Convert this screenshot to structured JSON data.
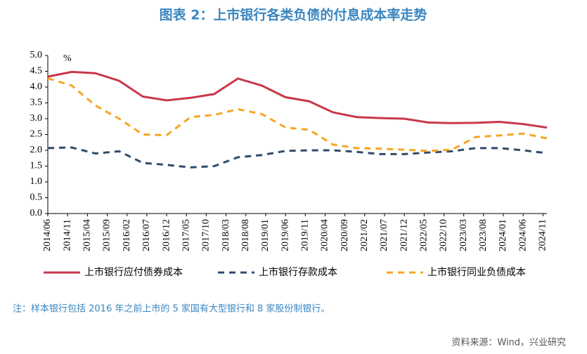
{
  "chart_data": {
    "type": "line",
    "title": "图表 2：上市银行各类负债的付息成本率走势",
    "unit_label": "%",
    "note": "注：样本银行包括 2016 年之前上市的 5 家国有大型银行和 8 家股份制银行。",
    "source": "资料来源：Wind，兴业研究",
    "x": [
      "2014/06",
      "2014/12",
      "2015/06",
      "2015/12",
      "2016/06",
      "2016/12",
      "2017/06",
      "2017/12",
      "2018/06",
      "2018/12",
      "2019/06",
      "2019/12",
      "2020/06",
      "2020/12",
      "2021/06",
      "2021/12",
      "2022/06",
      "2022/12",
      "2023/06",
      "2023/12",
      "2024/06",
      "2024/12"
    ],
    "xlim": [
      "2014/06",
      "2024/12"
    ],
    "xticks": [
      "2014/06",
      "2014/11",
      "2015/04",
      "2015/09",
      "2016/02",
      "2016/07",
      "2016/12",
      "2017/05",
      "2017/10",
      "2018/03",
      "2018/08",
      "2019/01",
      "2019/06",
      "2019/11",
      "2020/04",
      "2020/09",
      "2021/02",
      "2021/07",
      "2021/12",
      "2022/05",
      "2022/10",
      "2023/03",
      "2023/08",
      "2024/01",
      "2024/06",
      "2024/11"
    ],
    "ylim": [
      0,
      5
    ],
    "yticks": [
      {
        "value": 0,
        "label": "0.0"
      },
      {
        "value": 0.5,
        "label": "0.5"
      },
      {
        "value": 1,
        "label": "1.0"
      },
      {
        "value": 1.5,
        "label": "1.5"
      },
      {
        "value": 2,
        "label": "2.0"
      },
      {
        "value": 2.5,
        "label": "2.5"
      },
      {
        "value": 3,
        "label": "3.0"
      },
      {
        "value": 3.5,
        "label": "3.5"
      },
      {
        "value": 4,
        "label": "4.0"
      },
      {
        "value": 4.5,
        "label": "4.5"
      },
      {
        "value": 5,
        "label": "5.0"
      }
    ],
    "grid": false,
    "legend": "bottom",
    "series": [
      {
        "name": "上市银行应付债券成本",
        "color": "#c8374b",
        "dash": "solid",
        "values": [
          4.33,
          4.48,
          4.44,
          4.2,
          3.7,
          3.58,
          3.66,
          3.78,
          4.27,
          4.05,
          3.68,
          3.55,
          3.2,
          3.05,
          3.02,
          3.0,
          2.88,
          2.86,
          2.87,
          2.9,
          2.83,
          2.72
        ]
      },
      {
        "name": "上市银行存款成本",
        "color": "#2f4b6c",
        "dash": "dashed",
        "values": [
          2.07,
          2.09,
          1.9,
          1.97,
          1.6,
          1.54,
          1.46,
          1.5,
          1.78,
          1.85,
          1.98,
          2.0,
          2.0,
          1.95,
          1.88,
          1.88,
          1.93,
          1.97,
          2.07,
          2.07,
          2.0,
          1.91
        ]
      },
      {
        "name": "上市银行同业负债成本",
        "color": "#f5a623",
        "dash": "dashed",
        "values": [
          4.28,
          4.05,
          3.42,
          3.0,
          2.5,
          2.48,
          3.05,
          3.12,
          3.3,
          3.15,
          2.72,
          2.65,
          2.18,
          2.07,
          2.05,
          2.02,
          1.98,
          2.02,
          2.42,
          2.47,
          2.53,
          2.38
        ]
      }
    ]
  }
}
